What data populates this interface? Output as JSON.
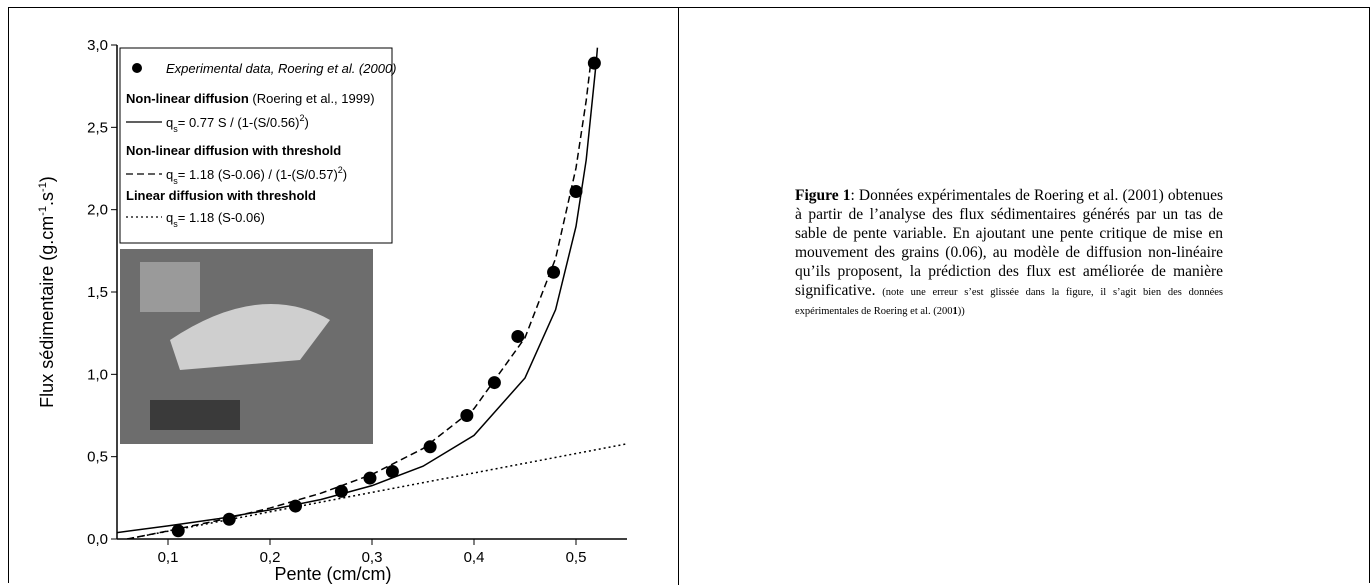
{
  "chart_data": {
    "type": "scatter",
    "x_label": "Pente (cm/cm)",
    "y_label_parts": [
      "Flux sédimentaire (g.cm",
      "-1",
      ".s",
      "-1",
      ")"
    ],
    "xlim": [
      0.05,
      0.55
    ],
    "ylim": [
      0,
      3
    ],
    "xticks": [
      {
        "value": 0.1,
        "label": "0,1"
      },
      {
        "value": 0.2,
        "label": "0,2"
      },
      {
        "value": 0.3,
        "label": "0,3"
      },
      {
        "value": 0.4,
        "label": "0,4"
      },
      {
        "value": 0.5,
        "label": "0,5"
      }
    ],
    "yticks": [
      {
        "value": 0,
        "label": "0,0"
      },
      {
        "value": 0.5,
        "label": "0,5"
      },
      {
        "value": 1,
        "label": "1,0"
      },
      {
        "value": 1.5,
        "label": "1,5"
      },
      {
        "value": 2,
        "label": "2,0"
      },
      {
        "value": 2.5,
        "label": "2,5"
      },
      {
        "value": 3,
        "label": "3,0"
      }
    ],
    "series": [
      {
        "name": "Experimental data, Roering et al. (2000)",
        "type": "scatter",
        "color": "#000000",
        "x": [
          0.11,
          0.16,
          0.225,
          0.27,
          0.298,
          0.32,
          0.357,
          0.393,
          0.42,
          0.443,
          0.478,
          0.5,
          0.518
        ],
        "values": [
          0.05,
          0.12,
          0.2,
          0.29,
          0.37,
          0.41,
          0.56,
          0.75,
          0.95,
          1.23,
          1.62,
          2.11,
          2.89
        ]
      },
      {
        "name": "Non-linear diffusion",
        "note": "(Roering et al., 1999)",
        "type": "line",
        "dash": "solid",
        "color": "#000000",
        "formula_parts": [
          "q",
          "s",
          "= 0.77 S / (1-(S/0.56)",
          "2",
          ")"
        ],
        "x": [
          0.05,
          0.1,
          0.15,
          0.2,
          0.25,
          0.3,
          0.35,
          0.4,
          0.45,
          0.48,
          0.5,
          0.51,
          0.52,
          0.521
        ],
        "values": [
          0.039,
          0.08,
          0.124,
          0.177,
          0.24,
          0.324,
          0.442,
          0.629,
          0.978,
          1.393,
          1.898,
          2.302,
          2.906,
          2.984
        ]
      },
      {
        "name": "Non-linear diffusion with threshold",
        "type": "line",
        "dash": "dashed",
        "color": "#000000",
        "formula_parts": [
          "q",
          "s",
          "= 1.18 (S-0.06) / (1-(S/0.57)",
          "2",
          ")"
        ],
        "x": [
          0.06,
          0.1,
          0.15,
          0.2,
          0.25,
          0.3,
          0.35,
          0.4,
          0.45,
          0.48,
          0.5,
          0.51,
          0.515
        ],
        "values": [
          0,
          0.049,
          0.114,
          0.188,
          0.278,
          0.392,
          0.549,
          0.791,
          1.222,
          1.704,
          2.253,
          2.663,
          2.923
        ]
      },
      {
        "name": "Linear diffusion with threshold",
        "type": "line",
        "dash": "dotted",
        "color": "#000000",
        "formula_parts": [
          "q",
          "s",
          "= 1.18 (S-0.06)"
        ],
        "x": [
          0.06,
          0.55
        ],
        "values": [
          0,
          0.578
        ]
      }
    ]
  },
  "caption": {
    "label": "Figure 1",
    "text": ": Données expérimentales de Roering et al. (2001) obtenues à partir de l’analyse des flux sédimentaires générés par un tas de sable de pente variable. En ajoutant une pente critique de mise en mouvement des grains (0.06), au modèle de diffusion non-linéaire qu’ils proposent, la prédiction des flux est améliorée de manière significative.",
    "note_parts": [
      " (note une erreur s’est glissée dans la figure, il s’agit bien des données expérimentales de Roering et al. (200",
      "1",
      "))"
    ]
  }
}
